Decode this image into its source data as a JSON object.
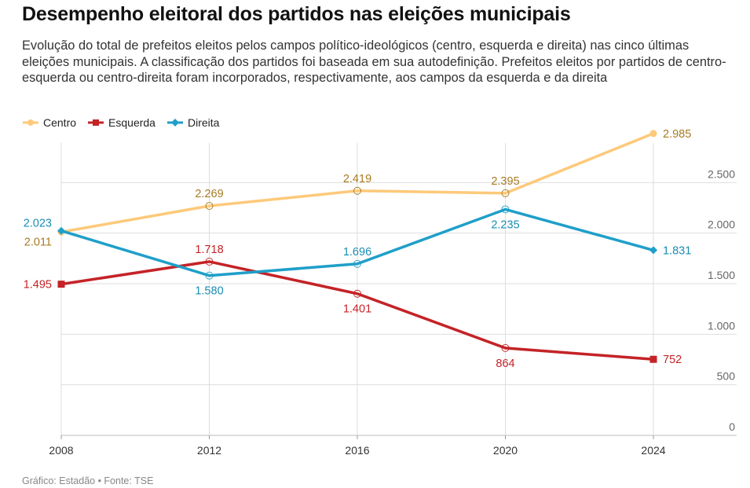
{
  "title": "Desempenho eleitoral dos partidos nas eleições municipais",
  "subtitle": "Evolução do total de prefeitos eleitos pelos campos político-ideológicos (centro, esquerda e direita) nas cinco últimas eleições municipais. A classificação dos partidos foi baseada em sua autodefinição. Prefeitos eleitos por partidos de centro-esquerda ou centro-direita foram incorporados, respectivamente, aos campos da esquerda e da direita",
  "footer": "Gráfico: Estadão • Fonte: TSE",
  "chart_data": {
    "type": "line",
    "x": [
      2008,
      2012,
      2016,
      2020,
      2024
    ],
    "x_tick_labels": [
      "2008",
      "2012",
      "2016",
      "2020",
      "2024"
    ],
    "ylim": [
      0,
      3000
    ],
    "y_ticks": [
      0,
      500,
      1000,
      1500,
      2000,
      2500
    ],
    "y_tick_labels": [
      "0",
      "500",
      "1.000",
      "1.500",
      "2.000",
      "2.500"
    ],
    "y_axis_position": "right",
    "grid": true,
    "legend_position": "top-left",
    "series": [
      {
        "name": "Centro",
        "color": "#fdc97a",
        "label_color": "#a87b22",
        "marker": "circle",
        "values": [
          2011,
          2269,
          2419,
          2395,
          2985
        ],
        "value_labels": [
          "2.011",
          "2.269",
          "2.419",
          "2.395",
          "2.985"
        ]
      },
      {
        "name": "Esquerda",
        "color": "#c42327",
        "label_color": "#c42327",
        "marker": "square",
        "values": [
          1495,
          1718,
          1401,
          864,
          752
        ],
        "value_labels": [
          "1.495",
          "1.718",
          "1.401",
          "864",
          "752"
        ]
      },
      {
        "name": "Direita",
        "color": "#1f9fc9",
        "label_color": "#1a8db3",
        "marker": "diamond",
        "values": [
          2023,
          1580,
          1696,
          2235,
          1831
        ],
        "value_labels": [
          "2.023",
          "1.580",
          "1.696",
          "2.235",
          "1.831"
        ]
      }
    ]
  }
}
